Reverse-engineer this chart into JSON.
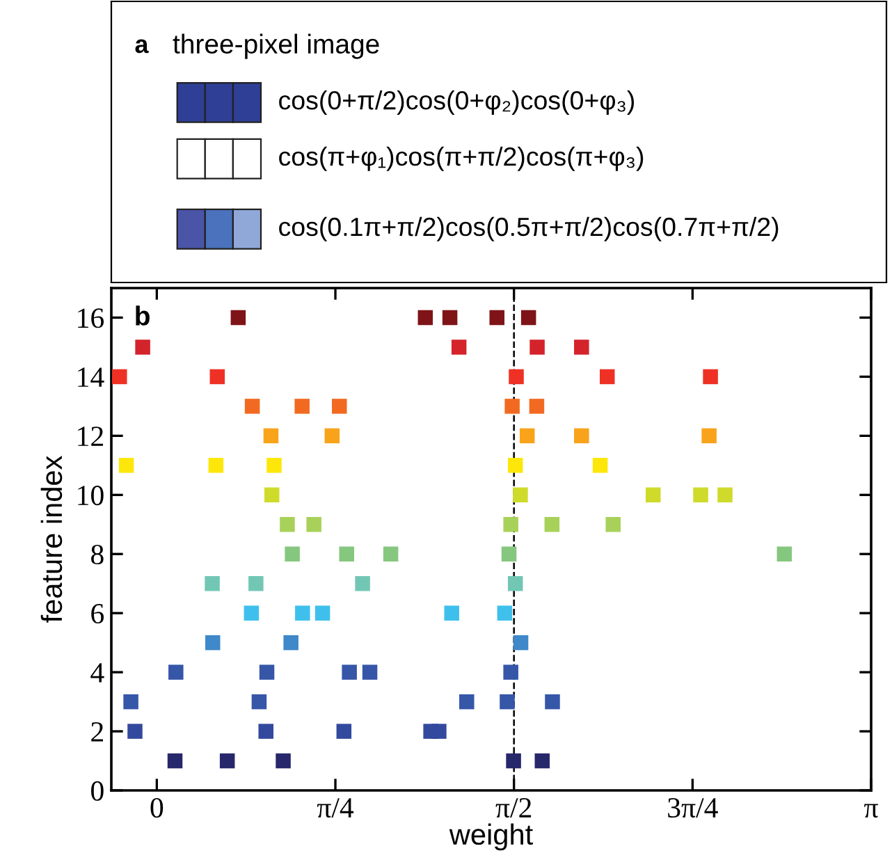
{
  "chart_data": [
    {
      "type": "other",
      "title": "three-pixel image",
      "annotations": [
        "a",
        "cos(0+π/2)cos(0+φ₂)cos(0+φ₃)",
        "cos(π+φ₁)cos(π+π/2)cos(π+φ₃)",
        "cos(0.1π+π/2)cos(0.5π+π/2)cos(0.7π+π/2)"
      ]
    },
    {
      "type": "scatter",
      "xlabel": "weight",
      "ylabel": "feature index",
      "annotations": [
        "b"
      ],
      "xlim": [
        -0.2,
        3.1416
      ],
      "xticks": [
        0,
        {
          "value": 0.7854,
          "label": "π/4"
        },
        {
          "value": 1.5708,
          "label": "π/2"
        },
        {
          "value": 2.3562,
          "label": "3π/4"
        },
        {
          "value": 3.1416,
          "label": "π"
        }
      ],
      "ylim": [
        0,
        17
      ],
      "yticks": [
        0,
        2,
        4,
        6,
        8,
        10,
        12,
        14,
        16
      ],
      "ref_lines": [
        {
          "axis": "x",
          "value": 1.5708,
          "color": "#000000",
          "line_style": "dashed"
        }
      ],
      "marker": "square",
      "grid": false,
      "series": [
        {
          "color": "#7f1418",
          "x": [
            0.358,
            1.181,
            1.289,
            1.496,
            1.635
          ],
          "values": [
            16,
            16,
            16,
            16,
            16
          ]
        },
        {
          "color": "#d4232b",
          "x": [
            -0.062,
            1.329,
            1.673,
            1.868
          ],
          "values": [
            15,
            15,
            15,
            15
          ]
        },
        {
          "color": "#ee3124",
          "x": [
            -0.164,
            0.266,
            1.581,
            1.981,
            2.435
          ],
          "values": [
            14,
            14,
            14,
            14,
            14
          ]
        },
        {
          "color": "#f26a21",
          "x": [
            0.42,
            0.639,
            0.803,
            1.563,
            1.671
          ],
          "values": [
            13,
            13,
            13,
            13,
            13
          ]
        },
        {
          "color": "#f9a31b",
          "x": [
            0.502,
            0.771,
            1.629,
            1.868,
            2.429
          ],
          "values": [
            12,
            12,
            12,
            12,
            12
          ]
        },
        {
          "color": "#fde70a",
          "x": [
            -0.134,
            0.26,
            0.516,
            1.577,
            1.95
          ],
          "values": [
            11,
            11,
            11,
            11,
            11
          ]
        },
        {
          "color": "#cfdb2a",
          "x": [
            0.506,
            1.599,
            2.183,
            2.392,
            2.499
          ],
          "values": [
            10,
            10,
            10,
            10,
            10
          ]
        },
        {
          "color": "#a8d15a",
          "x": [
            0.574,
            0.691,
            1.557,
            1.738,
            2.007
          ],
          "values": [
            9,
            9,
            9,
            9,
            9
          ]
        },
        {
          "color": "#86c77f",
          "x": [
            0.596,
            0.835,
            1.029,
            1.549,
            2.76
          ],
          "values": [
            8,
            8,
            8,
            8,
            8
          ]
        },
        {
          "color": "#72c7b4",
          "x": [
            0.244,
            0.436,
            0.905,
            1.577
          ],
          "values": [
            7,
            7,
            7,
            7
          ]
        },
        {
          "color": "#3fc0ec",
          "x": [
            0.416,
            0.641,
            0.729,
            1.297,
            1.53
          ],
          "values": [
            6,
            6,
            6,
            6,
            6
          ]
        },
        {
          "color": "#3f88c9",
          "x": [
            0.246,
            0.59,
            1.601
          ],
          "values": [
            5,
            5,
            5
          ]
        },
        {
          "color": "#3656a8",
          "x": [
            0.084,
            0.484,
            0.847,
            0.937,
            1.557
          ],
          "values": [
            4,
            4,
            4,
            4,
            4
          ]
        },
        {
          "color": "#3656a8",
          "x": [
            -0.114,
            0.45,
            1.363,
            1.541,
            1.74
          ],
          "values": [
            3,
            3,
            3,
            3,
            3
          ]
        },
        {
          "color": "#33499e",
          "x": [
            -0.096,
            0.48,
            0.823,
            1.205,
            1.241
          ],
          "values": [
            2,
            2,
            2,
            2,
            2
          ]
        },
        {
          "color": "#27276b",
          "x": [
            0.08,
            0.31,
            0.556,
            1.569,
            1.695
          ],
          "values": [
            1,
            1,
            1,
            1,
            1
          ]
        }
      ]
    }
  ]
}
